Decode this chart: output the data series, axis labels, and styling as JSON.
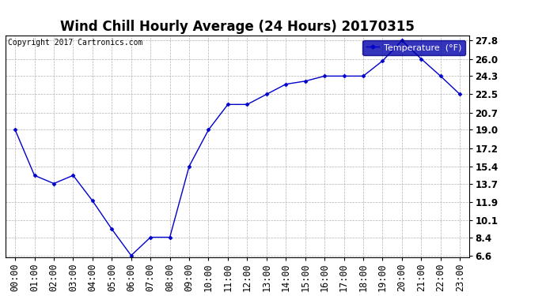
{
  "title": "Wind Chill Hourly Average (24 Hours) 20170315",
  "copyright": "Copyright 2017 Cartronics.com",
  "legend_label": "Temperature  (°F)",
  "x_labels": [
    "00:00",
    "01:00",
    "02:00",
    "03:00",
    "04:00",
    "05:00",
    "06:00",
    "07:00",
    "08:00",
    "09:00",
    "10:00",
    "11:00",
    "12:00",
    "13:00",
    "14:00",
    "15:00",
    "16:00",
    "17:00",
    "18:00",
    "19:00",
    "20:00",
    "21:00",
    "22:00",
    "23:00"
  ],
  "y_values": [
    19.0,
    14.5,
    13.7,
    14.5,
    12.0,
    9.2,
    6.6,
    8.4,
    8.4,
    15.4,
    19.0,
    21.5,
    21.5,
    22.5,
    23.5,
    23.8,
    24.3,
    24.3,
    24.3,
    25.8,
    27.8,
    26.0,
    24.3,
    22.5
  ],
  "y_ticks": [
    6.6,
    8.4,
    10.1,
    11.9,
    13.7,
    15.4,
    17.2,
    19.0,
    20.7,
    22.5,
    24.3,
    26.0,
    27.8
  ],
  "line_color": "#0000cc",
  "marker": "D",
  "marker_size": 2.5,
  "bg_color": "#ffffff",
  "plot_bg_color": "#ffffff",
  "grid_color": "#aaaaaa",
  "title_fontsize": 12,
  "tick_fontsize": 8.5,
  "copyright_fontsize": 7,
  "y_min": 6.6,
  "y_max": 27.8
}
